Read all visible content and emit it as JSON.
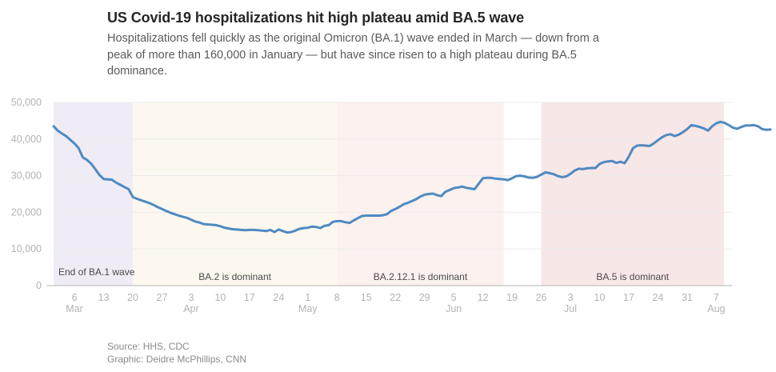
{
  "header": {
    "title": "US Covid-19 hospitalizations hit high plateau amid BA.5 wave",
    "subtitle": "Hospitalizations fell quickly as the original Omicron (BA.1) wave ended in March — down from a peak of more than 160,000 in January — but have since risen to a high plateau during BA.5 dominance."
  },
  "footer": {
    "source": "Source: HHS, CDC",
    "credit": "Graphic: Deidre McPhillips, CNN"
  },
  "chart_data": {
    "type": "line",
    "title": "US Covid-19 hospitalizations hit high plateau amid BA.5 wave",
    "xlabel": "",
    "ylabel": "",
    "ylim": [
      0,
      50000
    ],
    "yticks": [
      0,
      10000,
      20000,
      30000,
      40000,
      50000
    ],
    "ytick_labels": [
      "0",
      "10,000",
      "20,000",
      "30,000",
      "40,000",
      "50,000"
    ],
    "grid": true,
    "line_color": "#4f8ac1",
    "x_start_date": "Mar 1",
    "x_range_days": [
      0,
      160
    ],
    "xticks": [
      {
        "day": 5,
        "label": "6",
        "month": "Mar"
      },
      {
        "day": 12,
        "label": "13",
        "month": ""
      },
      {
        "day": 19,
        "label": "20",
        "month": ""
      },
      {
        "day": 26,
        "label": "27",
        "month": ""
      },
      {
        "day": 33,
        "label": "3",
        "month": "Apr"
      },
      {
        "day": 40,
        "label": "10",
        "month": ""
      },
      {
        "day": 47,
        "label": "17",
        "month": ""
      },
      {
        "day": 54,
        "label": "24",
        "month": ""
      },
      {
        "day": 61,
        "label": "1",
        "month": "May"
      },
      {
        "day": 68,
        "label": "8",
        "month": ""
      },
      {
        "day": 75,
        "label": "15",
        "month": ""
      },
      {
        "day": 82,
        "label": "22",
        "month": ""
      },
      {
        "day": 89,
        "label": "29",
        "month": ""
      },
      {
        "day": 96,
        "label": "5",
        "month": "Jun"
      },
      {
        "day": 103,
        "label": "12",
        "month": ""
      },
      {
        "day": 110,
        "label": "19",
        "month": ""
      },
      {
        "day": 117,
        "label": "26",
        "month": ""
      },
      {
        "day": 124,
        "label": "3",
        "month": "Jul"
      },
      {
        "day": 131,
        "label": "10",
        "month": ""
      },
      {
        "day": 138,
        "label": "17",
        "month": ""
      },
      {
        "day": 145,
        "label": "24",
        "month": ""
      },
      {
        "day": 152,
        "label": "31",
        "month": ""
      },
      {
        "day": 159,
        "label": "7",
        "month": "Aug"
      }
    ],
    "bands": [
      {
        "label": "End of BA.1 wave",
        "start_day": 0,
        "end_day": 19,
        "color": "#f0ecf6",
        "label_align": "left"
      },
      {
        "label": "BA.2 is dominant",
        "start_day": 19,
        "end_day": 68,
        "color": "#fcf8ef",
        "label_align": "center"
      },
      {
        "label": "BA.2.12.1 is dominant",
        "start_day": 68,
        "end_day": 108,
        "color": "#fbf1ee",
        "label_align": "center"
      },
      {
        "label": "BA.5 is dominant",
        "start_day": 117,
        "end_day": 161,
        "color": "#f8e7e7",
        "label_align": "center"
      }
    ],
    "series": [
      {
        "name": "US Covid-19 hospitalizations",
        "values": [
          43500,
          42300,
          41500,
          40800,
          39800,
          38800,
          37500,
          35000,
          34300,
          33300,
          31800,
          30200,
          29100,
          29000,
          28900,
          28100,
          27500,
          26900,
          26300,
          24200,
          23700,
          23300,
          22900,
          22500,
          22000,
          21400,
          20900,
          20400,
          19900,
          19500,
          19100,
          18800,
          18500,
          18000,
          17500,
          17200,
          16800,
          16700,
          16600,
          16500,
          16200,
          15800,
          15600,
          15400,
          15300,
          15200,
          15100,
          15200,
          15200,
          15100,
          15000,
          14900,
          15200,
          14600,
          15300,
          14900,
          14500,
          14600,
          15000,
          15500,
          15700,
          15800,
          16100,
          16000,
          15700,
          16300,
          16500,
          17400,
          17600,
          17600,
          17300,
          17100,
          17800,
          18400,
          19000,
          19100,
          19100,
          19100,
          19100,
          19200,
          19500,
          20400,
          20900,
          21500,
          22200,
          22600,
          23100,
          23600,
          24300,
          24800,
          25000,
          25100,
          24700,
          24400,
          25600,
          26100,
          26600,
          26800,
          27000,
          26700,
          26500,
          26300,
          27800,
          29300,
          29400,
          29400,
          29200,
          29100,
          29000,
          28800,
          29300,
          29900,
          30000,
          29800,
          29500,
          29400,
          29700,
          30300,
          30900,
          30700,
          30400,
          29900,
          29600,
          29800,
          30500,
          31400,
          31900,
          31800,
          32000,
          32100,
          32100,
          33200,
          33700,
          33900,
          34000,
          33500,
          33800,
          33400,
          35200,
          37500,
          38200,
          38300,
          38200,
          38100,
          38800,
          39700,
          40500,
          41100,
          41300,
          40800,
          41200,
          41900,
          42700,
          43800,
          43600,
          43300,
          42900,
          42300,
          43500,
          44300,
          44700,
          44400,
          43800,
          43100,
          42800,
          43300,
          43700,
          43700,
          43800,
          43500,
          42700,
          42500,
          42600
        ]
      }
    ]
  }
}
